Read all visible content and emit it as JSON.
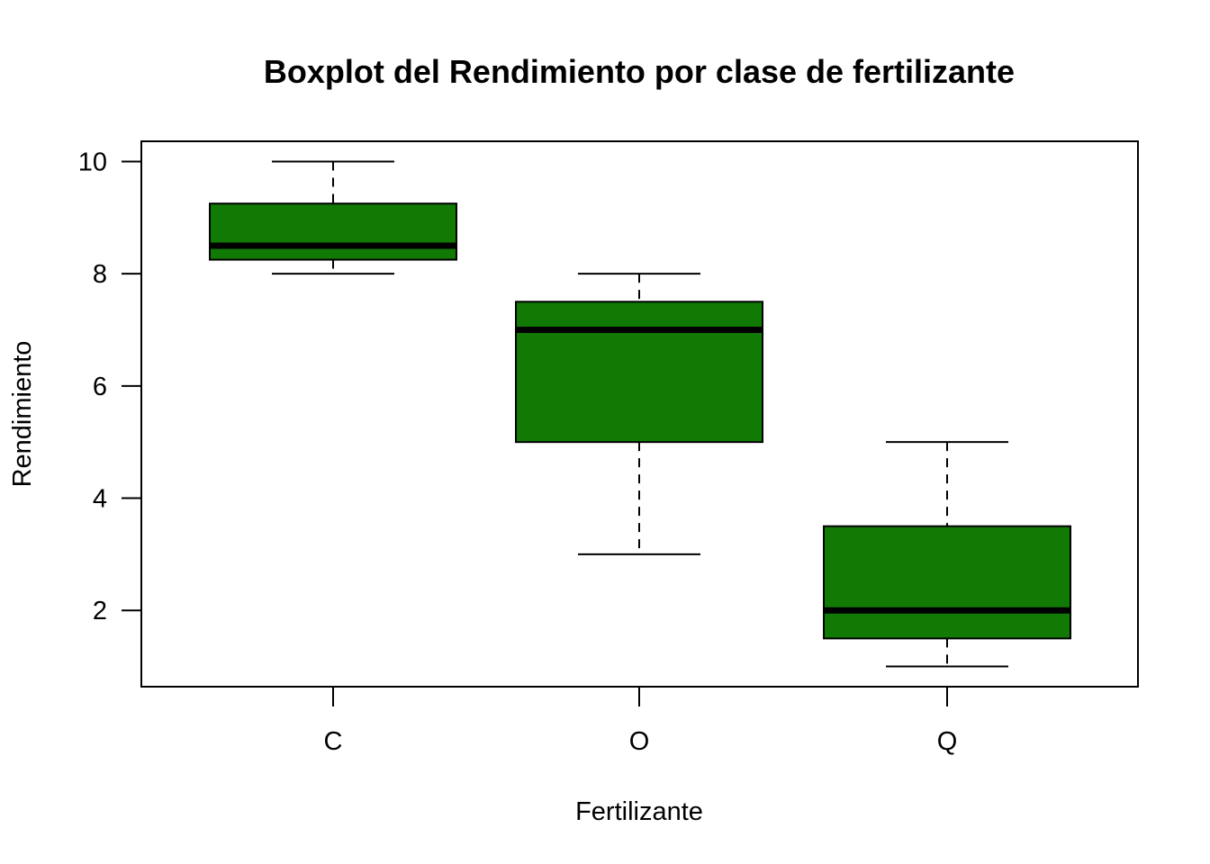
{
  "chart_data": {
    "type": "boxplot",
    "title": "Boxplot del Rendimiento por clase de fertilizante",
    "xlabel": "Fertilizante",
    "ylabel": "Rendimiento",
    "categories": [
      "C",
      "O",
      "Q"
    ],
    "boxes": [
      {
        "category": "C",
        "whisker_low": 8,
        "q1": 8.25,
        "median": 8.5,
        "q3": 9.25,
        "whisker_high": 10
      },
      {
        "category": "O",
        "whisker_low": 3,
        "q1": 5,
        "median": 7,
        "q3": 7.5,
        "whisker_high": 8
      },
      {
        "category": "Q",
        "whisker_low": 1,
        "q1": 1.5,
        "median": 2,
        "q3": 3.5,
        "whisker_high": 5
      }
    ],
    "ylim": [
      0.64,
      10.36
    ],
    "yticks": [
      2,
      4,
      6,
      8,
      10
    ],
    "grid": false,
    "box_color": "#117A04",
    "median_color": "#000000"
  }
}
